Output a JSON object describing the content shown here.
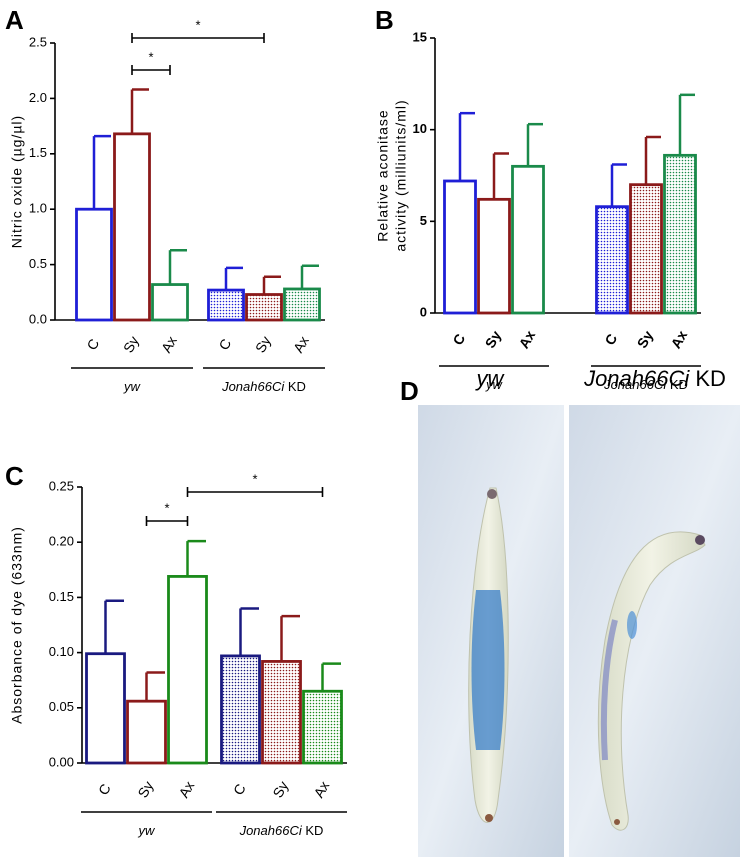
{
  "chart_data": [
    {
      "type": "bar",
      "panel": "A",
      "ylabel": [
        "Nitric oxide (µg/µl)"
      ],
      "categories": [
        "C",
        "Sy",
        "Ax",
        "C",
        "Sy",
        "Ax"
      ],
      "values": [
        1.0,
        1.68,
        0.32,
        0.27,
        0.23,
        0.28
      ],
      "errors": [
        0.66,
        0.4,
        0.31,
        0.2,
        0.16,
        0.21
      ],
      "colors": [
        "#1f1fd6",
        "#8b1a1a",
        "#1a8a4a",
        "#1f1fd6",
        "#8b1a1a",
        "#1a8a4a"
      ],
      "hatched": [
        false,
        false,
        false,
        true,
        true,
        true
      ],
      "groups": [
        [
          "yw"
        ],
        [
          "Jonah66Ci",
          "KD"
        ]
      ],
      "ylim": [
        0,
        2.5
      ],
      "yticks": [
        {
          "value": 0,
          "label": "0.0"
        },
        0.5,
        {
          "value": 1,
          "label": "1.0"
        },
        1.5,
        {
          "value": 2,
          "label": "2.0"
        },
        2.5
      ],
      "significance": [
        {
          "from": 1,
          "to": 2,
          "label": "*"
        },
        {
          "from": 1,
          "to": 4,
          "label": "*"
        }
      ]
    },
    {
      "type": "bar",
      "panel": "B",
      "ylabel": [
        "Relative aconitase",
        "activity (milliunits/ml)"
      ],
      "categories": [
        "C",
        "Sy",
        "Ax",
        "C",
        "Sy",
        "Ax"
      ],
      "values": [
        7.2,
        6.2,
        8.0,
        5.8,
        7.0,
        8.6
      ],
      "errors": [
        3.7,
        2.5,
        2.3,
        2.3,
        2.6,
        3.3
      ],
      "colors": [
        "#1f1fd6",
        "#8b1a1a",
        "#1a8a4a",
        "#1f1fd6",
        "#8b1a1a",
        "#1a8a4a"
      ],
      "hatched": [
        false,
        false,
        false,
        true,
        true,
        true
      ],
      "groups": [
        [
          "yw"
        ],
        [
          "Jonah66Ci",
          "KD"
        ]
      ],
      "ylim": [
        0,
        15
      ],
      "yticks": [
        0,
        5,
        10,
        15
      ],
      "significance": []
    },
    {
      "type": "bar",
      "panel": "C",
      "ylabel": [
        "Absorbance of dye (633nm)"
      ],
      "categories": [
        "C",
        "Sy",
        "Ax",
        "C",
        "Sy",
        "Ax"
      ],
      "values": [
        0.099,
        0.056,
        0.169,
        0.097,
        0.092,
        0.065
      ],
      "errors": [
        0.048,
        0.026,
        0.032,
        0.043,
        0.041,
        0.025
      ],
      "colors": [
        "#1a1a80",
        "#8b1a1a",
        "#1a8a1a",
        "#1a1a80",
        "#8b1a1a",
        "#1a8a1a"
      ],
      "hatched": [
        false,
        false,
        false,
        true,
        true,
        true
      ],
      "groups": [
        [
          "yw"
        ],
        [
          "Jonah66Ci",
          "KD"
        ]
      ],
      "ylim": [
        0,
        0.25
      ],
      "yticks": [
        {
          "value": 0,
          "label": "0.00"
        },
        0.05,
        {
          "value": 0.1,
          "label": "0.10"
        },
        0.15,
        {
          "value": 0.2,
          "label": "0.20"
        },
        0.25
      ],
      "significance": [
        {
          "from": 1,
          "to": 2,
          "label": "*"
        },
        {
          "from": 2,
          "to": 5,
          "label": "*"
        }
      ]
    }
  ],
  "panel_d": {
    "label": "D",
    "captions": [
      [
        "yw"
      ],
      [
        "Jonah66Ci",
        "KD"
      ]
    ]
  }
}
